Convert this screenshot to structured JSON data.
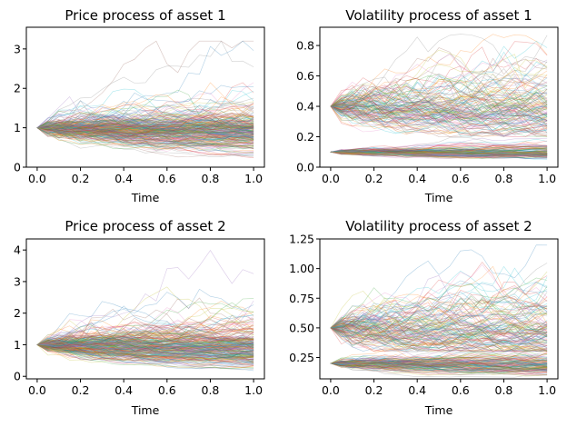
{
  "chart_data": [
    {
      "type": "line",
      "title": "Price process of asset 1",
      "xlabel": "Time",
      "ylabel": "",
      "xlim": [
        -0.05,
        1.05
      ],
      "ylim": [
        0,
        3.55
      ],
      "xticks": [
        0.0,
        0.2,
        0.4,
        0.6,
        0.8,
        1.0
      ],
      "xtick_labels": [
        "0.0",
        "0.2",
        "0.4",
        "0.6",
        "0.8",
        "1.0"
      ],
      "yticks": [
        0,
        1,
        2,
        3
      ],
      "ytick_labels": [
        "0",
        "1",
        "2",
        "3"
      ],
      "grid": false,
      "legend": "none",
      "time_steps": [
        0.0,
        0.05,
        0.1,
        0.15,
        0.2,
        0.25,
        0.3,
        0.35,
        0.4,
        0.45,
        0.5,
        0.55,
        0.6,
        0.65,
        0.7,
        0.75,
        0.8,
        0.85,
        0.9,
        0.95,
        1.0
      ],
      "series_count": 500,
      "start_value": 1.0,
      "envelope": {
        "x": [
          0.0,
          0.2,
          0.4,
          0.6,
          0.8,
          1.0
        ],
        "min": [
          1.0,
          0.6,
          0.45,
          0.35,
          0.3,
          0.25
        ],
        "median": [
          1.0,
          1.0,
          0.98,
          0.97,
          0.96,
          0.95
        ],
        "max": [
          1.0,
          2.65,
          2.6,
          2.95,
          3.3,
          3.2
        ]
      },
      "line_opacity": 0.35
    },
    {
      "type": "line",
      "title": "Volatility process of asset 1",
      "xlabel": "Time",
      "ylabel": "",
      "xlim": [
        -0.05,
        1.05
      ],
      "ylim": [
        0,
        0.92
      ],
      "xticks": [
        0.0,
        0.2,
        0.4,
        0.6,
        0.8,
        1.0
      ],
      "xtick_labels": [
        "0.0",
        "0.2",
        "0.4",
        "0.6",
        "0.8",
        "1.0"
      ],
      "yticks": [
        0.0,
        0.2,
        0.4,
        0.6,
        0.8
      ],
      "ytick_labels": [
        "0.0",
        "0.2",
        "0.4",
        "0.6",
        "0.8"
      ],
      "grid": false,
      "legend": "none",
      "time_steps": [
        0.0,
        0.05,
        0.1,
        0.15,
        0.2,
        0.25,
        0.3,
        0.35,
        0.4,
        0.45,
        0.5,
        0.55,
        0.6,
        0.65,
        0.7,
        0.75,
        0.8,
        0.85,
        0.9,
        0.95,
        1.0
      ],
      "groups": [
        {
          "start_value": 0.4,
          "envelope": {
            "x": [
              0.0,
              1.0
            ],
            "min": [
              0.4,
              0.2
            ],
            "max": [
              0.4,
              0.88
            ]
          }
        },
        {
          "start_value": 0.1,
          "envelope": {
            "x": [
              0.0,
              1.0
            ],
            "min": [
              0.1,
              0.05
            ],
            "max": [
              0.1,
              0.2
            ]
          }
        }
      ],
      "line_opacity": 0.35
    },
    {
      "type": "line",
      "title": "Price process of asset 2",
      "xlabel": "Time",
      "ylabel": "",
      "xlim": [
        -0.05,
        1.05
      ],
      "ylim": [
        -0.08,
        4.35
      ],
      "xticks": [
        0.0,
        0.2,
        0.4,
        0.6,
        0.8,
        1.0
      ],
      "xtick_labels": [
        "0.0",
        "0.2",
        "0.4",
        "0.6",
        "0.8",
        "1.0"
      ],
      "yticks": [
        0,
        1,
        2,
        3,
        4
      ],
      "ytick_labels": [
        "0",
        "1",
        "2",
        "3",
        "4"
      ],
      "grid": false,
      "legend": "none",
      "time_steps": [
        0.0,
        0.05,
        0.1,
        0.15,
        0.2,
        0.25,
        0.3,
        0.35,
        0.4,
        0.45,
        0.5,
        0.55,
        0.6,
        0.65,
        0.7,
        0.75,
        0.8,
        0.85,
        0.9,
        0.95,
        1.0
      ],
      "series_count": 500,
      "start_value": 1.0,
      "envelope": {
        "x": [
          0.0,
          0.2,
          0.4,
          0.6,
          0.8,
          1.0
        ],
        "min": [
          1.0,
          0.55,
          0.4,
          0.3,
          0.25,
          0.2
        ],
        "median": [
          1.0,
          1.0,
          0.97,
          0.95,
          0.93,
          0.9
        ],
        "max": [
          1.0,
          2.3,
          3.6,
          3.4,
          3.9,
          4.2
        ]
      },
      "line_opacity": 0.35
    },
    {
      "type": "line",
      "title": "Volatility process of asset 2",
      "xlabel": "Time",
      "ylabel": "",
      "xlim": [
        -0.05,
        1.05
      ],
      "ylim": [
        0.07,
        1.25
      ],
      "xticks": [
        0.0,
        0.2,
        0.4,
        0.6,
        0.8,
        1.0
      ],
      "xtick_labels": [
        "0.0",
        "0.2",
        "0.4",
        "0.6",
        "0.8",
        "1.0"
      ],
      "yticks": [
        0.25,
        0.5,
        0.75,
        1.0,
        1.25
      ],
      "ytick_labels": [
        "0.25",
        "0.50",
        "0.75",
        "1.00",
        "1.25"
      ],
      "grid": false,
      "legend": "none",
      "time_steps": [
        0.0,
        0.05,
        0.1,
        0.15,
        0.2,
        0.25,
        0.3,
        0.35,
        0.4,
        0.45,
        0.5,
        0.55,
        0.6,
        0.65,
        0.7,
        0.75,
        0.8,
        0.85,
        0.9,
        0.95,
        1.0
      ],
      "groups": [
        {
          "start_value": 0.5,
          "envelope": {
            "x": [
              0.0,
              1.0
            ],
            "min": [
              0.5,
              0.3
            ],
            "max": [
              0.5,
              1.2
            ]
          }
        },
        {
          "start_value": 0.2,
          "envelope": {
            "x": [
              0.0,
              1.0
            ],
            "min": [
              0.2,
              0.08
            ],
            "max": [
              0.2,
              0.45
            ]
          }
        }
      ],
      "line_opacity": 0.35
    }
  ],
  "palette": [
    "#1f77b4",
    "#ff7f0e",
    "#2ca02c",
    "#d62728",
    "#9467bd",
    "#8c564b",
    "#e377c2",
    "#7f7f7f",
    "#bcbd22",
    "#17becf"
  ]
}
